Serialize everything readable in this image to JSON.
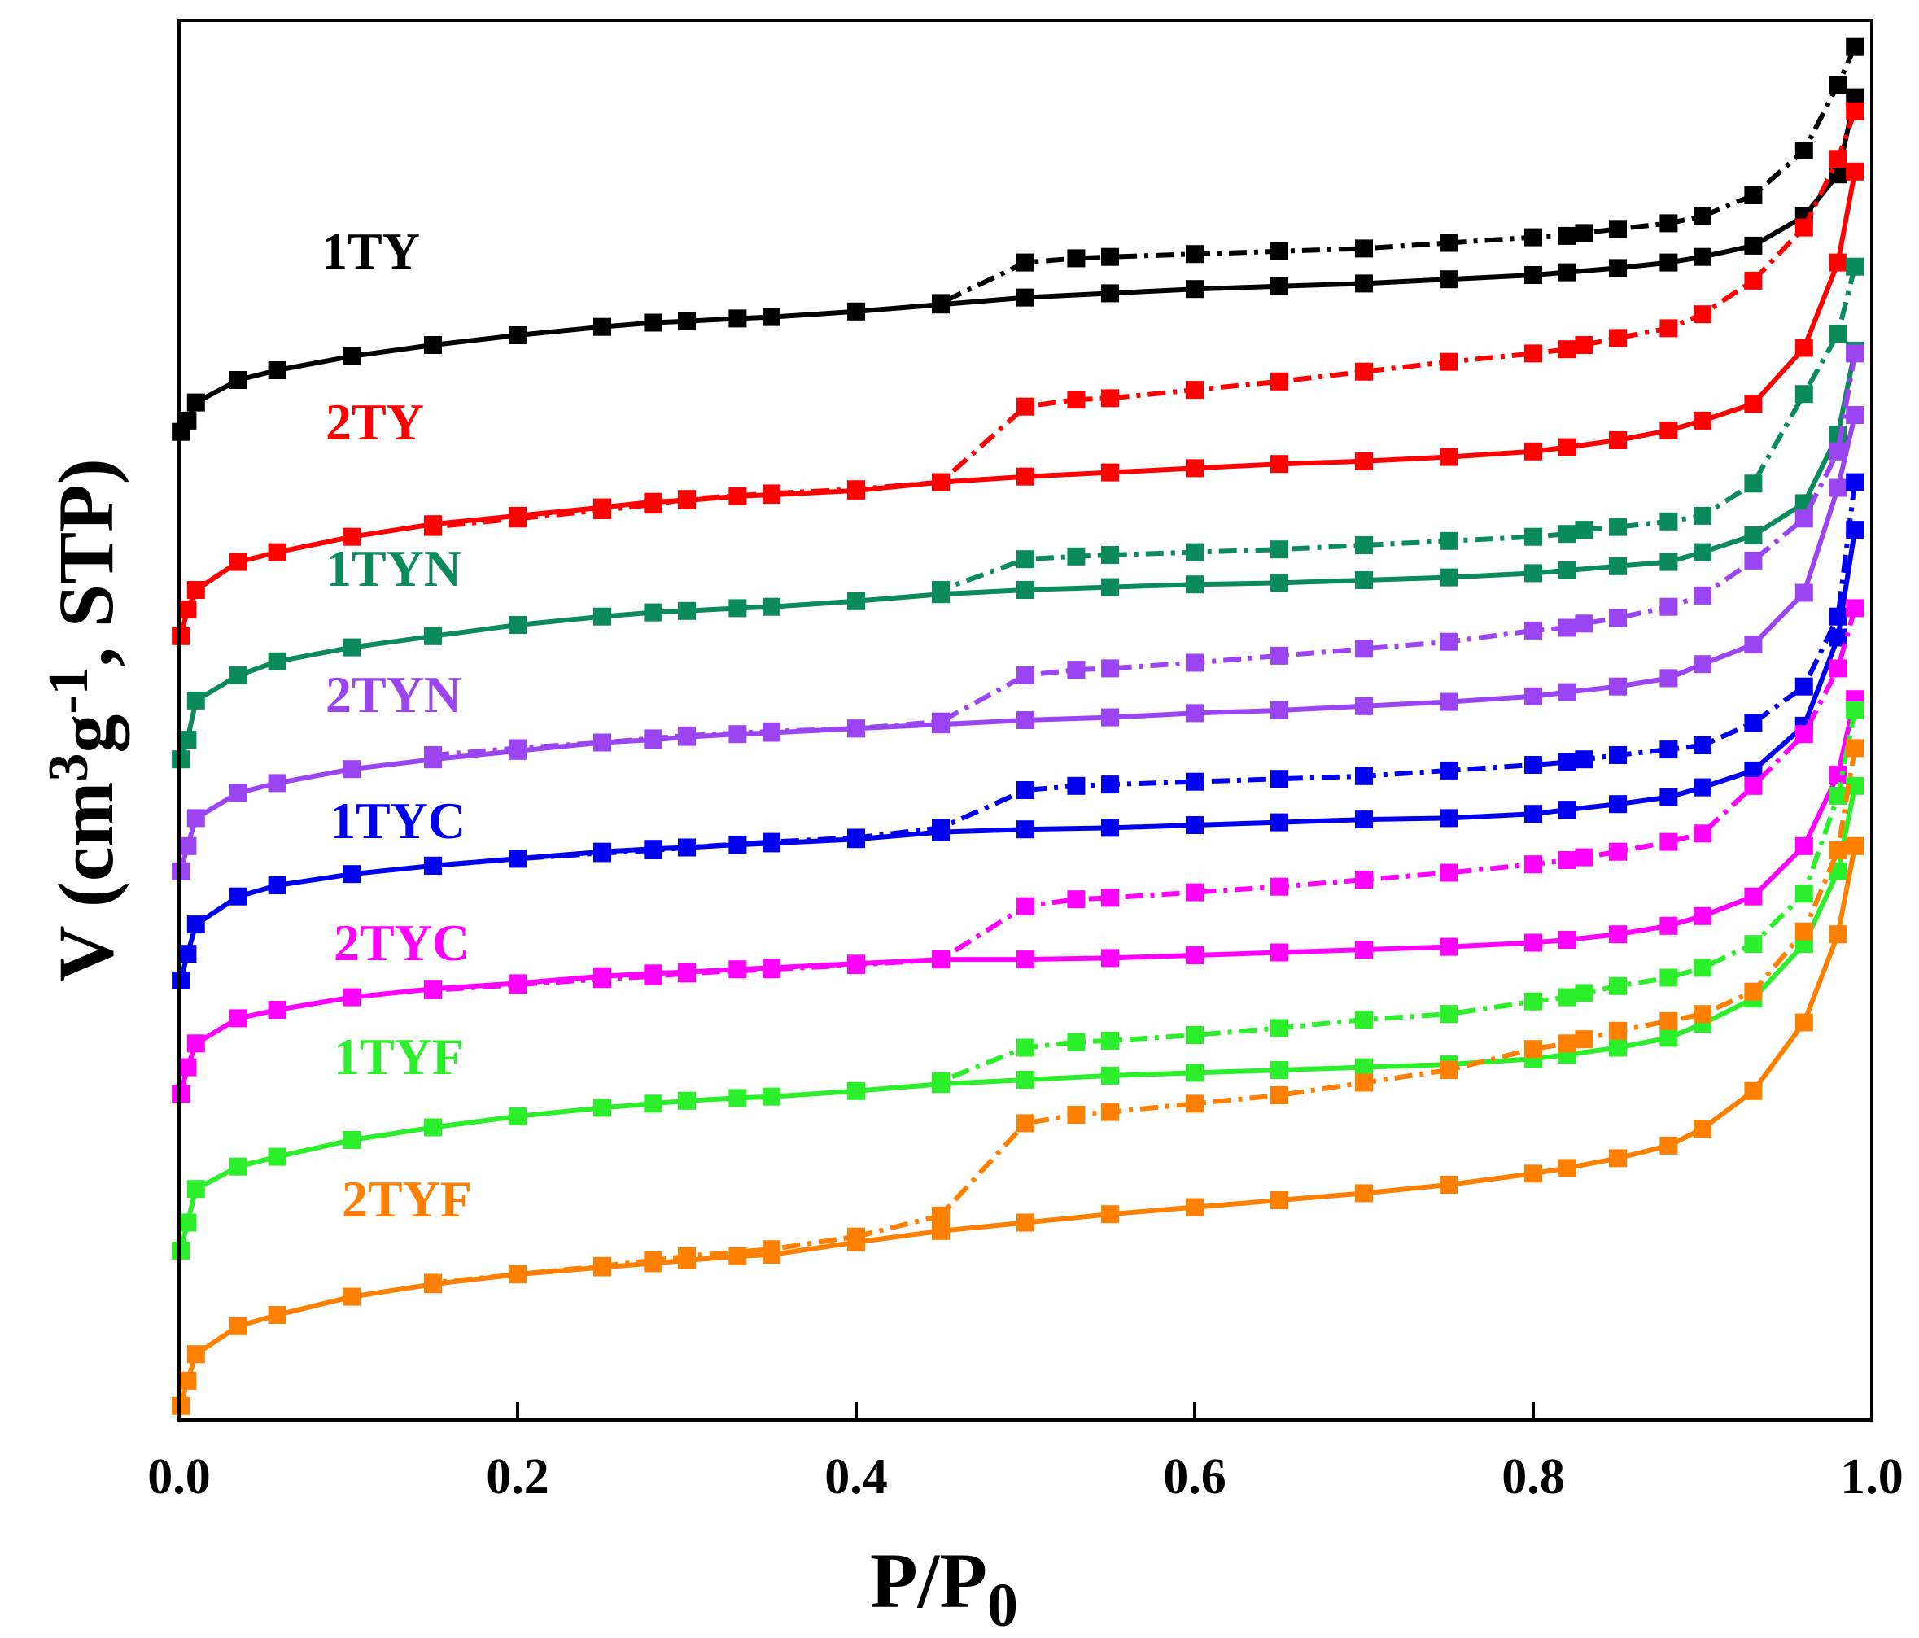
{
  "chart_data": {
    "type": "line",
    "xlabel": "P/P",
    "xlabel_sub": "0",
    "ylabel": "V (cm",
    "ylabel_sup1": "3",
    "ylabel_mid": "g",
    "ylabel_sup2": "-1",
    "ylabel_end": ", STP)",
    "xlim": [
      0.0,
      1.0
    ],
    "ylim": [
      0,
      100
    ],
    "x_ticks": [
      "0.0",
      "0.2",
      "0.4",
      "0.6",
      "0.8",
      "1.0"
    ],
    "y_ticks_shown": false,
    "marker": "square",
    "series": [
      {
        "name": "1TY",
        "color": "#000000",
        "adsorption": {
          "x": [
            0.001,
            0.005,
            0.01,
            0.035,
            0.058,
            0.102,
            0.15,
            0.2,
            0.25,
            0.28,
            0.3,
            0.33,
            0.35,
            0.4,
            0.45,
            0.5,
            0.55,
            0.6,
            0.65,
            0.7,
            0.75,
            0.8,
            0.82,
            0.85,
            0.88,
            0.9,
            0.93,
            0.96,
            0.98,
            0.99
          ],
          "y": [
            70.6,
            71.4,
            72.7,
            74.3,
            75.0,
            76.0,
            76.8,
            77.5,
            78.1,
            78.4,
            78.5,
            78.7,
            78.8,
            79.2,
            79.7,
            80.2,
            80.5,
            80.8,
            81.0,
            81.2,
            81.5,
            81.8,
            82.0,
            82.3,
            82.7,
            83.1,
            83.9,
            86.0,
            89.0,
            94.5
          ]
        },
        "desorption": {
          "x": [
            0.99,
            0.98,
            0.96,
            0.93,
            0.9,
            0.88,
            0.85,
            0.83,
            0.82,
            0.8,
            0.75,
            0.7,
            0.65,
            0.6,
            0.55,
            0.53,
            0.5,
            0.45
          ],
          "y": [
            98.1,
            95.4,
            90.7,
            87.5,
            86.0,
            85.5,
            85.1,
            84.8,
            84.6,
            84.5,
            84.1,
            83.7,
            83.5,
            83.3,
            83.1,
            83.0,
            82.7,
            79.8
          ]
        }
      },
      {
        "name": "2TY",
        "color": "#ff0000",
        "adsorption": {
          "x": [
            0.001,
            0.005,
            0.01,
            0.035,
            0.058,
            0.102,
            0.15,
            0.2,
            0.25,
            0.28,
            0.3,
            0.33,
            0.35,
            0.4,
            0.45,
            0.5,
            0.55,
            0.6,
            0.65,
            0.7,
            0.75,
            0.8,
            0.82,
            0.85,
            0.88,
            0.9,
            0.93,
            0.96,
            0.98,
            0.99
          ],
          "y": [
            56.0,
            57.9,
            59.3,
            61.3,
            62.0,
            63.1,
            64.0,
            64.6,
            65.2,
            65.6,
            65.7,
            66.0,
            66.1,
            66.4,
            67.0,
            67.4,
            67.7,
            68.0,
            68.3,
            68.5,
            68.8,
            69.2,
            69.5,
            70.0,
            70.7,
            71.4,
            72.6,
            76.6,
            82.7,
            89.2
          ]
        },
        "desorption": {
          "x": [
            0.99,
            0.98,
            0.96,
            0.93,
            0.9,
            0.88,
            0.85,
            0.83,
            0.82,
            0.8,
            0.75,
            0.7,
            0.65,
            0.6,
            0.55,
            0.53,
            0.5,
            0.45,
            0.4,
            0.35,
            0.3,
            0.28,
            0.25,
            0.2,
            0.15
          ],
          "y": [
            93.5,
            90.1,
            85.2,
            81.4,
            79.0,
            78.0,
            77.3,
            76.8,
            76.5,
            76.2,
            75.6,
            74.9,
            74.2,
            73.6,
            73.0,
            72.9,
            72.4,
            67.0,
            66.5,
            66.2,
            65.8,
            65.4,
            65.0,
            64.4,
            63.8
          ]
        }
      },
      {
        "name": "1TYN",
        "color": "#0b8a5b",
        "adsorption": {
          "x": [
            0.001,
            0.005,
            0.01,
            0.035,
            0.058,
            0.102,
            0.15,
            0.2,
            0.25,
            0.28,
            0.3,
            0.33,
            0.35,
            0.4,
            0.45,
            0.5,
            0.55,
            0.6,
            0.65,
            0.7,
            0.75,
            0.8,
            0.82,
            0.85,
            0.88,
            0.9,
            0.93,
            0.96,
            0.98,
            0.99
          ],
          "y": [
            47.2,
            48.6,
            51.4,
            53.2,
            54.2,
            55.2,
            56.0,
            56.8,
            57.4,
            57.7,
            57.8,
            58.0,
            58.1,
            58.5,
            59.0,
            59.3,
            59.5,
            59.7,
            59.8,
            60.0,
            60.2,
            60.5,
            60.7,
            61.0,
            61.3,
            62.0,
            63.2,
            65.5,
            70.4,
            76.4
          ]
        },
        "desorption": {
          "x": [
            0.99,
            0.98,
            0.96,
            0.93,
            0.9,
            0.88,
            0.85,
            0.83,
            0.82,
            0.8,
            0.75,
            0.7,
            0.65,
            0.6,
            0.55,
            0.53,
            0.5,
            0.45
          ],
          "y": [
            82.4,
            77.6,
            73.3,
            66.9,
            64.6,
            64.2,
            63.8,
            63.6,
            63.3,
            63.1,
            62.8,
            62.5,
            62.2,
            62.0,
            61.8,
            61.7,
            61.5,
            59.3
          ]
        }
      },
      {
        "name": "2TYN",
        "color": "#9b45f2",
        "adsorption": {
          "x": [
            0.001,
            0.005,
            0.01,
            0.035,
            0.058,
            0.102,
            0.15,
            0.2,
            0.25,
            0.28,
            0.3,
            0.33,
            0.35,
            0.4,
            0.45,
            0.5,
            0.55,
            0.6,
            0.65,
            0.7,
            0.75,
            0.8,
            0.82,
            0.85,
            0.88,
            0.9,
            0.93,
            0.96,
            0.98,
            0.99
          ],
          "y": [
            39.2,
            41.0,
            43.0,
            44.8,
            45.5,
            46.5,
            47.2,
            47.8,
            48.4,
            48.6,
            48.8,
            49.0,
            49.1,
            49.4,
            49.7,
            50.0,
            50.2,
            50.5,
            50.7,
            51.0,
            51.3,
            51.7,
            52.0,
            52.4,
            53.0,
            54.0,
            55.4,
            59.1,
            66.6,
            71.8
          ]
        },
        "desorption": {
          "x": [
            0.99,
            0.98,
            0.96,
            0.93,
            0.9,
            0.88,
            0.85,
            0.83,
            0.82,
            0.8,
            0.75,
            0.7,
            0.65,
            0.6,
            0.55,
            0.53,
            0.5,
            0.45,
            0.4,
            0.35,
            0.3,
            0.28,
            0.25,
            0.2,
            0.15
          ],
          "y": [
            76.2,
            69.2,
            64.4,
            61.4,
            58.9,
            58.1,
            57.3,
            56.9,
            56.6,
            56.4,
            55.6,
            55.1,
            54.6,
            54.1,
            53.7,
            53.6,
            53.2,
            49.9,
            49.4,
            49.2,
            48.9,
            48.7,
            48.4,
            48.0,
            47.5
          ]
        }
      },
      {
        "name": "1TYC",
        "color": "#0000ee",
        "adsorption": {
          "x": [
            0.001,
            0.005,
            0.01,
            0.035,
            0.058,
            0.102,
            0.15,
            0.2,
            0.25,
            0.28,
            0.3,
            0.33,
            0.35,
            0.4,
            0.45,
            0.5,
            0.55,
            0.6,
            0.65,
            0.7,
            0.75,
            0.8,
            0.82,
            0.85,
            0.88,
            0.9,
            0.93,
            0.96,
            0.98,
            0.99
          ],
          "y": [
            31.4,
            33.3,
            35.4,
            37.4,
            38.2,
            39.0,
            39.6,
            40.1,
            40.6,
            40.8,
            40.9,
            41.1,
            41.2,
            41.5,
            42.0,
            42.2,
            42.3,
            42.5,
            42.7,
            42.9,
            43.0,
            43.3,
            43.6,
            44.0,
            44.5,
            45.2,
            46.4,
            49.6,
            55.9,
            63.6
          ]
        },
        "desorption": {
          "x": [
            0.99,
            0.98,
            0.96,
            0.93,
            0.9,
            0.88,
            0.85,
            0.83,
            0.82,
            0.8,
            0.75,
            0.7,
            0.65,
            0.6,
            0.55,
            0.53,
            0.5,
            0.45,
            0.4,
            0.35,
            0.3,
            0.28,
            0.25,
            0.2,
            0.15
          ],
          "y": [
            67.0,
            57.4,
            52.4,
            49.8,
            48.2,
            47.9,
            47.5,
            47.2,
            47.0,
            46.8,
            46.4,
            46.0,
            45.8,
            45.6,
            45.4,
            45.3,
            45.0,
            42.3,
            41.6,
            41.3,
            40.9,
            40.7,
            40.5,
            40.1,
            39.6
          ]
        }
      },
      {
        "name": "2TYC",
        "color": "#ff00ff",
        "adsorption": {
          "x": [
            0.001,
            0.005,
            0.01,
            0.035,
            0.058,
            0.102,
            0.15,
            0.2,
            0.25,
            0.28,
            0.3,
            0.33,
            0.35,
            0.4,
            0.45,
            0.5,
            0.55,
            0.6,
            0.65,
            0.7,
            0.75,
            0.8,
            0.82,
            0.85,
            0.88,
            0.9,
            0.93,
            0.96,
            0.98,
            0.99
          ],
          "y": [
            23.3,
            25.2,
            26.9,
            28.7,
            29.3,
            30.2,
            30.8,
            31.2,
            31.7,
            31.9,
            32.0,
            32.2,
            32.3,
            32.6,
            32.9,
            32.9,
            33.0,
            33.2,
            33.4,
            33.6,
            33.8,
            34.1,
            34.3,
            34.7,
            35.3,
            36.0,
            37.4,
            41.0,
            46.1,
            51.5
          ]
        },
        "desorption": {
          "x": [
            0.99,
            0.98,
            0.96,
            0.93,
            0.9,
            0.88,
            0.85,
            0.83,
            0.82,
            0.8,
            0.75,
            0.7,
            0.65,
            0.6,
            0.55,
            0.53,
            0.5,
            0.45,
            0.4,
            0.35,
            0.3,
            0.28,
            0.25,
            0.2,
            0.15
          ],
          "y": [
            58.0,
            53.7,
            49.0,
            45.3,
            41.9,
            41.3,
            40.6,
            40.2,
            40.0,
            39.7,
            39.1,
            38.6,
            38.1,
            37.7,
            37.3,
            37.2,
            36.7,
            32.9,
            32.5,
            32.2,
            31.9,
            31.7,
            31.5,
            31.1,
            30.7
          ]
        }
      },
      {
        "name": "1TYF",
        "color": "#2bef2b",
        "adsorption": {
          "x": [
            0.001,
            0.005,
            0.01,
            0.035,
            0.058,
            0.102,
            0.15,
            0.2,
            0.25,
            0.28,
            0.3,
            0.33,
            0.35,
            0.4,
            0.45,
            0.5,
            0.55,
            0.6,
            0.65,
            0.7,
            0.75,
            0.8,
            0.82,
            0.85,
            0.88,
            0.9,
            0.93,
            0.96,
            0.98,
            0.99
          ],
          "y": [
            12.1,
            14.1,
            16.5,
            18.1,
            18.8,
            20.0,
            20.9,
            21.7,
            22.3,
            22.6,
            22.8,
            23.0,
            23.1,
            23.5,
            24.0,
            24.3,
            24.6,
            24.8,
            25.0,
            25.2,
            25.4,
            25.8,
            26.1,
            26.6,
            27.3,
            28.3,
            30.1,
            34.0,
            39.2,
            45.3
          ]
        },
        "desorption": {
          "x": [
            0.99,
            0.98,
            0.96,
            0.93,
            0.9,
            0.88,
            0.85,
            0.83,
            0.82,
            0.8,
            0.75,
            0.7,
            0.65,
            0.6,
            0.55,
            0.53,
            0.5,
            0.45
          ],
          "y": [
            50.7,
            44.6,
            37.6,
            34.0,
            32.3,
            31.6,
            31.0,
            30.5,
            30.2,
            29.9,
            29.0,
            28.6,
            28.0,
            27.5,
            27.1,
            27.0,
            26.6,
            24.2
          ]
        }
      },
      {
        "name": "2TYF",
        "color": "#ff8000",
        "adsorption": {
          "x": [
            0.001,
            0.005,
            0.01,
            0.035,
            0.058,
            0.102,
            0.15,
            0.2,
            0.25,
            0.28,
            0.3,
            0.33,
            0.35,
            0.4,
            0.45,
            0.5,
            0.55,
            0.6,
            0.65,
            0.7,
            0.75,
            0.8,
            0.82,
            0.85,
            0.88,
            0.9,
            0.93,
            0.96,
            0.98,
            0.99
          ],
          "y": [
            1.0,
            2.8,
            4.7,
            6.7,
            7.5,
            8.8,
            9.7,
            10.4,
            10.9,
            11.2,
            11.4,
            11.7,
            11.8,
            12.7,
            13.5,
            14.1,
            14.7,
            15.2,
            15.7,
            16.2,
            16.8,
            17.6,
            18.0,
            18.7,
            19.6,
            20.8,
            23.5,
            28.4,
            34.7,
            41.0
          ]
        },
        "desorption": {
          "x": [
            0.99,
            0.98,
            0.96,
            0.93,
            0.9,
            0.88,
            0.85,
            0.83,
            0.82,
            0.8,
            0.75,
            0.7,
            0.65,
            0.6,
            0.55,
            0.53,
            0.5,
            0.45,
            0.4,
            0.35,
            0.3,
            0.28,
            0.25,
            0.2,
            0.15
          ],
          "y": [
            48.0,
            40.7,
            34.9,
            30.6,
            29.0,
            28.5,
            27.8,
            27.2,
            26.9,
            26.5,
            25.0,
            24.1,
            23.2,
            22.6,
            22.0,
            21.8,
            21.2,
            14.6,
            13.1,
            12.2,
            11.7,
            11.4,
            11.0,
            10.4,
            9.8
          ]
        }
      }
    ]
  }
}
